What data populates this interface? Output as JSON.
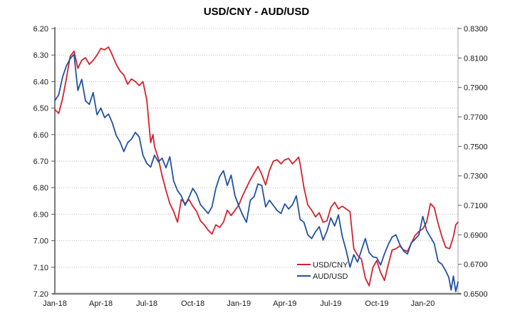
{
  "title": "USD/CNY - AUD/USD",
  "legend": {
    "position": "inside-bottom-center",
    "items": [
      {
        "label": "USD/CNY",
        "color": "#d2232f"
      },
      {
        "label": "AUD/USD",
        "color": "#2152a2"
      }
    ]
  },
  "colors": {
    "grid": "#bdbdbd",
    "left_spine": "#262626",
    "right_spine": "#a6a6a6",
    "bottom_spine": "#808080",
    "tick_mark": "#595959"
  },
  "chart_data": {
    "type": "line",
    "title": "USD/CNY - AUD/USD",
    "grid": "horizontal dotted, at left-axis ticks",
    "legend_position": "inside plot, lower middle",
    "x_axis": {
      "unit": "months since Jan-2018",
      "range": [
        0,
        26.3
      ],
      "tick_months": [
        0,
        3,
        6,
        9,
        12,
        15,
        18,
        21,
        24
      ],
      "tick_labels": [
        "Jan-18",
        "Apr-18",
        "Jul-18",
        "Oct-18",
        "Jan-19",
        "Apr-19",
        "Jul-19",
        "Oct-19",
        "Jan-20"
      ]
    },
    "left_axis": {
      "series": "USD/CNY",
      "inverted": true,
      "range": [
        6.2,
        7.2
      ],
      "tick_labels": [
        "6.20",
        "6.30",
        "6.40",
        "6.50",
        "6.60",
        "6.70",
        "6.80",
        "6.90",
        "7.00",
        "7.10",
        "7.20"
      ]
    },
    "right_axis": {
      "series": "AUD/USD",
      "inverted": false,
      "range": [
        0.65,
        0.83
      ],
      "tick_labels": [
        "0.8300",
        "0.8100",
        "0.7900",
        "0.7700",
        "0.7500",
        "0.7300",
        "0.7100",
        "0.6900",
        "0.6700",
        "0.6500"
      ]
    },
    "series": [
      {
        "name": "USD/CNY",
        "axis": "left",
        "color": "#d2232f",
        "points": [
          [
            0.0,
            6.505
          ],
          [
            0.25,
            6.52
          ],
          [
            0.5,
            6.465
          ],
          [
            0.75,
            6.39
          ],
          [
            1.0,
            6.305
          ],
          [
            1.25,
            6.285
          ],
          [
            1.5,
            6.35
          ],
          [
            1.75,
            6.32
          ],
          [
            2.0,
            6.31
          ],
          [
            2.25,
            6.335
          ],
          [
            2.5,
            6.32
          ],
          [
            2.75,
            6.3
          ],
          [
            3.0,
            6.275
          ],
          [
            3.25,
            6.28
          ],
          [
            3.5,
            6.27
          ],
          [
            3.75,
            6.3
          ],
          [
            4.0,
            6.335
          ],
          [
            4.25,
            6.36
          ],
          [
            4.5,
            6.375
          ],
          [
            4.75,
            6.41
          ],
          [
            5.0,
            6.39
          ],
          [
            5.25,
            6.4
          ],
          [
            5.5,
            6.415
          ],
          [
            5.75,
            6.4
          ],
          [
            6.0,
            6.47
          ],
          [
            6.25,
            6.63
          ],
          [
            6.4,
            6.6
          ],
          [
            6.5,
            6.645
          ],
          [
            6.75,
            6.69
          ],
          [
            7.0,
            6.755
          ],
          [
            7.25,
            6.81
          ],
          [
            7.5,
            6.86
          ],
          [
            7.75,
            6.89
          ],
          [
            8.0,
            6.93
          ],
          [
            8.25,
            6.845
          ],
          [
            8.5,
            6.86
          ],
          [
            8.75,
            6.845
          ],
          [
            9.0,
            6.87
          ],
          [
            9.25,
            6.89
          ],
          [
            9.5,
            6.925
          ],
          [
            9.75,
            6.94
          ],
          [
            10.0,
            6.96
          ],
          [
            10.25,
            6.975
          ],
          [
            10.5,
            6.94
          ],
          [
            10.75,
            6.95
          ],
          [
            11.0,
            6.93
          ],
          [
            11.25,
            6.885
          ],
          [
            11.5,
            6.905
          ],
          [
            11.75,
            6.885
          ],
          [
            12.0,
            6.865
          ],
          [
            12.25,
            6.83
          ],
          [
            12.5,
            6.8
          ],
          [
            12.75,
            6.77
          ],
          [
            13.0,
            6.745
          ],
          [
            13.25,
            6.72
          ],
          [
            13.5,
            6.75
          ],
          [
            13.75,
            6.79
          ],
          [
            14.0,
            6.735
          ],
          [
            14.25,
            6.7
          ],
          [
            14.5,
            6.695
          ],
          [
            14.75,
            6.71
          ],
          [
            15.0,
            6.695
          ],
          [
            15.25,
            6.69
          ],
          [
            15.5,
            6.71
          ],
          [
            15.75,
            6.695
          ],
          [
            15.9,
            6.685
          ],
          [
            16.0,
            6.71
          ],
          [
            16.25,
            6.8
          ],
          [
            16.5,
            6.865
          ],
          [
            16.75,
            6.885
          ],
          [
            17.0,
            6.91
          ],
          [
            17.25,
            6.895
          ],
          [
            17.5,
            6.93
          ],
          [
            17.75,
            6.925
          ],
          [
            18.0,
            6.875
          ],
          [
            18.25,
            6.855
          ],
          [
            18.5,
            6.88
          ],
          [
            18.75,
            6.87
          ],
          [
            19.0,
            6.88
          ],
          [
            19.25,
            6.89
          ],
          [
            19.5,
            7.03
          ],
          [
            19.75,
            7.055
          ],
          [
            20.0,
            7.07
          ],
          [
            20.25,
            7.14
          ],
          [
            20.5,
            7.17
          ],
          [
            20.75,
            7.1
          ],
          [
            21.0,
            7.075
          ],
          [
            21.25,
            7.12
          ],
          [
            21.5,
            7.15
          ],
          [
            21.75,
            7.09
          ],
          [
            22.0,
            7.035
          ],
          [
            22.25,
            7.03
          ],
          [
            22.5,
            7.02
          ],
          [
            22.75,
            7.035
          ],
          [
            23.0,
            7.04
          ],
          [
            23.25,
            7.01
          ],
          [
            23.5,
            6.98
          ],
          [
            23.75,
            6.965
          ],
          [
            24.0,
            6.955
          ],
          [
            24.25,
            6.93
          ],
          [
            24.5,
            6.86
          ],
          [
            24.75,
            6.875
          ],
          [
            25.0,
            6.935
          ],
          [
            25.25,
            6.985
          ],
          [
            25.5,
            7.025
          ],
          [
            25.75,
            7.03
          ],
          [
            26.0,
            6.985
          ],
          [
            26.15,
            6.94
          ],
          [
            26.3,
            6.93
          ]
        ]
      },
      {
        "name": "AUD/USD",
        "axis": "right",
        "color": "#2152a2",
        "points": [
          [
            0.0,
            0.781
          ],
          [
            0.25,
            0.785
          ],
          [
            0.5,
            0.797
          ],
          [
            0.75,
            0.8045
          ],
          [
            1.0,
            0.8095
          ],
          [
            1.25,
            0.8125
          ],
          [
            1.5,
            0.788
          ],
          [
            1.75,
            0.7955
          ],
          [
            2.0,
            0.781
          ],
          [
            2.25,
            0.7785
          ],
          [
            2.5,
            0.7865
          ],
          [
            2.75,
            0.7715
          ],
          [
            3.0,
            0.776
          ],
          [
            3.25,
            0.7695
          ],
          [
            3.5,
            0.772
          ],
          [
            3.75,
            0.766
          ],
          [
            4.0,
            0.7575
          ],
          [
            4.25,
            0.753
          ],
          [
            4.5,
            0.7465
          ],
          [
            4.75,
            0.7525
          ],
          [
            5.0,
            0.755
          ],
          [
            5.25,
            0.7595
          ],
          [
            5.5,
            0.7565
          ],
          [
            5.75,
            0.744
          ],
          [
            6.0,
            0.7385
          ],
          [
            6.25,
            0.736
          ],
          [
            6.5,
            0.744
          ],
          [
            6.75,
            0.7395
          ],
          [
            7.0,
            0.742
          ],
          [
            7.25,
            0.7355
          ],
          [
            7.5,
            0.743
          ],
          [
            7.75,
            0.7265
          ],
          [
            8.0,
            0.72
          ],
          [
            8.25,
            0.7165
          ],
          [
            8.5,
            0.71
          ],
          [
            8.75,
            0.7155
          ],
          [
            9.0,
            0.7215
          ],
          [
            9.25,
            0.7175
          ],
          [
            9.5,
            0.7105
          ],
          [
            9.75,
            0.7075
          ],
          [
            10.0,
            0.7045
          ],
          [
            10.25,
            0.709
          ],
          [
            10.5,
            0.7215
          ],
          [
            10.75,
            0.7295
          ],
          [
            11.0,
            0.7335
          ],
          [
            11.25,
            0.7235
          ],
          [
            11.5,
            0.7305
          ],
          [
            11.75,
            0.7165
          ],
          [
            12.0,
            0.7095
          ],
          [
            12.25,
            0.7035
          ],
          [
            12.5,
            0.6985
          ],
          [
            12.75,
            0.7135
          ],
          [
            13.0,
            0.716
          ],
          [
            13.25,
            0.7245
          ],
          [
            13.5,
            0.7235
          ],
          [
            13.75,
            0.709
          ],
          [
            14.0,
            0.7135
          ],
          [
            14.25,
            0.71
          ],
          [
            14.5,
            0.7065
          ],
          [
            14.75,
            0.7045
          ],
          [
            15.0,
            0.711
          ],
          [
            15.25,
            0.7075
          ],
          [
            15.5,
            0.7105
          ],
          [
            15.75,
            0.7165
          ],
          [
            16.0,
            0.7005
          ],
          [
            16.25,
            0.6985
          ],
          [
            16.5,
            0.69
          ],
          [
            16.75,
            0.6875
          ],
          [
            17.0,
            0.692
          ],
          [
            17.25,
            0.6955
          ],
          [
            17.5,
            0.6865
          ],
          [
            17.75,
            0.6925
          ],
          [
            18.0,
            0.7015
          ],
          [
            18.25,
            0.696
          ],
          [
            18.5,
            0.7035
          ],
          [
            18.75,
            0.689
          ],
          [
            19.0,
            0.6795
          ],
          [
            19.25,
            0.668
          ],
          [
            19.5,
            0.6765
          ],
          [
            19.75,
            0.6715
          ],
          [
            20.0,
            0.6795
          ],
          [
            20.25,
            0.6875
          ],
          [
            20.5,
            0.678
          ],
          [
            20.75,
            0.675
          ],
          [
            21.0,
            0.6745
          ],
          [
            21.25,
            0.6695
          ],
          [
            21.5,
            0.677
          ],
          [
            21.75,
            0.6835
          ],
          [
            22.0,
            0.6885
          ],
          [
            22.25,
            0.69
          ],
          [
            22.5,
            0.6835
          ],
          [
            22.75,
            0.679
          ],
          [
            23.0,
            0.677
          ],
          [
            23.25,
            0.6845
          ],
          [
            23.5,
            0.687
          ],
          [
            23.75,
            0.69
          ],
          [
            24.0,
            0.7025
          ],
          [
            24.25,
            0.693
          ],
          [
            24.5,
            0.6885
          ],
          [
            24.75,
            0.684
          ],
          [
            25.0,
            0.672
          ],
          [
            25.25,
            0.67
          ],
          [
            25.5,
            0.6655
          ],
          [
            25.7,
            0.661
          ],
          [
            25.85,
            0.6525
          ],
          [
            26.0,
            0.662
          ],
          [
            26.15,
            0.6515
          ],
          [
            26.3,
            0.658
          ]
        ]
      }
    ]
  }
}
